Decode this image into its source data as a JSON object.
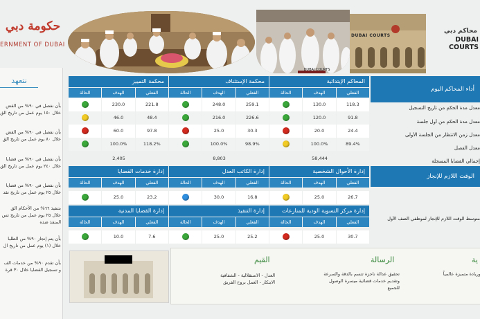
{
  "header": {
    "gov_logo_ar": "حكومة دبي",
    "gov_logo_en": "ERNMENT OF DUBAI",
    "courts_logo_ar": "محاكم دبي",
    "courts_logo_en": "DUBAI COURTS",
    "photo_building_sign": "DUBAI COURTS",
    "photo_banner_text": "DUBAI COURTS"
  },
  "left": {
    "title": "نتعهد",
    "pledges": [
      {
        "l1": "بأن نفصل في ٩٠% من القض",
        "l2": "خلال ١٥٠ يوم عمل من تاريخ الق"
      },
      {
        "l1": "بأن نفصل في ٩٠% من القض",
        "l2": "خلال ٨٠ يوم عمل من تاريخ الق"
      },
      {
        "l1": "بأن نفصل في ٩٠% من قضايا",
        "l2": "خلال ٢٤٠ يوم عمل من تاريخ الق"
      },
      {
        "l1": "بأن نفصل في ٩٠% من قضايا",
        "l2": "خلال ٢٥ يوم عمل من تاريخ تقد"
      },
      {
        "l1": "بتنفيذ ٦٦% من الأحكام الق",
        "l2": "خلال ٢٥ يوم عمل من تاريخ تس",
        "l3": "المنفذ ضده"
      },
      {
        "l1": "بأن يتم إنجاز ٩٠% من الطلبا",
        "l2": "خلال (١) يوم عمل من تاريخ ال"
      },
      {
        "l1": "بأن تقدم ٩٠% من خدمات الف",
        "l2": "و تسجيل القضايا خلال ٣٠ قرة"
      }
    ]
  },
  "dashboard": {
    "courts": [
      {
        "name": "المحاكم الإبتدائية",
        "actual_label": "الفعلي",
        "target_label": "الهدف",
        "status_label": "الحالة",
        "rows": [
          {
            "actual": "118.3",
            "target": "130.0",
            "status": "green"
          },
          {
            "actual": "91.8",
            "target": "120.0",
            "status": "green"
          },
          {
            "actual": "24.4",
            "target": "20.0",
            "status": "red"
          },
          {
            "actual": "89.4%",
            "target": "100.0%",
            "status": "yellow"
          }
        ],
        "total": "58,444"
      },
      {
        "name": "محكمة الإستئناف",
        "actual_label": "الفعلي",
        "target_label": "الهدف",
        "status_label": "الحالة",
        "rows": [
          {
            "actual": "259.1",
            "target": "248.0",
            "status": "green"
          },
          {
            "actual": "226.6",
            "target": "216.0",
            "status": "green"
          },
          {
            "actual": "30.3",
            "target": "25.0",
            "status": "red"
          },
          {
            "actual": "98.9%",
            "target": "100.0%",
            "status": "green"
          }
        ],
        "total": "8,803"
      },
      {
        "name": "محكمة التمييز",
        "actual_label": "الفعلي",
        "target_label": "الهدف",
        "status_label": "الحالة",
        "rows": [
          {
            "actual": "221.8",
            "target": "230.0",
            "status": "green"
          },
          {
            "actual": "48.4",
            "target": "46.0",
            "status": "yellow"
          },
          {
            "actual": "97.8",
            "target": "60.0",
            "status": "red"
          },
          {
            "actual": "118.2%",
            "target": "100.0%",
            "status": "green"
          }
        ],
        "total": "2,405"
      }
    ],
    "depts_row1": [
      {
        "name": "إدارة الأحوال الشخصية",
        "actual_label": "الفعلي",
        "target_label": "الهدف",
        "status_label": "الحالة",
        "actual": "26.7",
        "target": "25.0",
        "status": "yellow"
      },
      {
        "name": "إدارة الكاتب العدل",
        "actual_label": "الفعلي",
        "target_label": "الهدف",
        "status_label": "الحالة",
        "actual": "16.8",
        "target": "30.0",
        "status": "blue"
      },
      {
        "name": "إدارة خدمات القضايا",
        "actual_label": "الفعلي",
        "target_label": "الهدف",
        "status_label": "الحالة",
        "actual": "23.2",
        "target": "25.0",
        "status": "green"
      }
    ],
    "depts_row2": [
      {
        "name": "إدارة مركز التسوية الودية للمنازعات",
        "actual_label": "الفعلي",
        "target_label": "الهدف",
        "status_label": "الحالة",
        "actual": "30.7",
        "target": "25.0",
        "status": "red"
      },
      {
        "name": "إدارة التنفيذ",
        "actual_label": "الفعلي",
        "target_label": "الهدف",
        "status_label": "الحالة",
        "actual": "25.2",
        "target": "25.0",
        "status": "green"
      },
      {
        "name": "إدارة القضايا المدنية",
        "actual_label": "الفعلي",
        "target_label": "الهدف",
        "status_label": "الحالة",
        "actual": "7.6",
        "target": "10.0",
        "status": "green"
      }
    ]
  },
  "labels": {
    "perf_header": "أداء المحاكم اليوم",
    "metrics": [
      "معدل مدة الحكم من تاريخ التسجيل",
      "معدل مدة الحكم من أول جلسة",
      "معدل زمن الانتظار من الجلسة الأولى",
      "معدل الفصل",
      "إجمالي القضايا المسجلة"
    ],
    "time_header": "الوقت اللازم للإنجاز",
    "time_desc": "متوسط الوقت اللازم للإنجاز لموظفي الصف الأول"
  },
  "bottom": {
    "values_title": "القيم",
    "values_line1": "العدل  -  الاستقلالية  -  الشفافية",
    "values_line2": "الابتكار  -  العمل بروح الفريق",
    "mission_title": "الرسالة",
    "mission_line1": "تحقيق عدالة ناجزة تتسم بالدقة والسرعة",
    "mission_line2": "وتقديم خدمات قضائية ميسرة الوصول",
    "mission_line3": "للجميع",
    "vision_title": "ية",
    "vision_line1": "وريادة متميزة عالمياً"
  },
  "colors": {
    "accent": "#1e78b4",
    "green": "#3aa83a",
    "red": "#d42a1f",
    "yellow": "#f2cc25",
    "blue": "#2f8fe0",
    "brand_red": "#c0392b",
    "values_green": "#3b8a3e"
  }
}
